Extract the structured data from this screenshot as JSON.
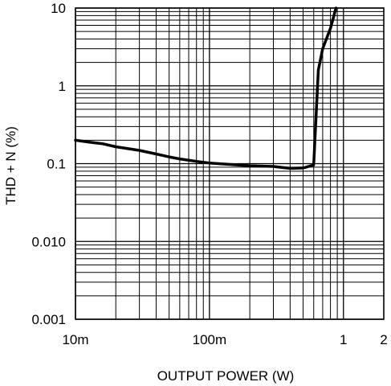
{
  "chart_data": {
    "type": "line",
    "title": "",
    "xlabel": "OUTPUT POWER (W)",
    "ylabel": "THD + N (%)",
    "x_scale": "log",
    "y_scale": "log",
    "xlim": [
      0.01,
      2
    ],
    "ylim": [
      0.001,
      10
    ],
    "grid": true,
    "x_ticks": [
      {
        "value": 0.01,
        "label": "10m"
      },
      {
        "value": 0.1,
        "label": "100m"
      },
      {
        "value": 1,
        "label": "1"
      },
      {
        "value": 2,
        "label": "2"
      }
    ],
    "y_ticks": [
      {
        "value": 10,
        "label": "10"
      },
      {
        "value": 1,
        "label": "1"
      },
      {
        "value": 0.1,
        "label": "0.1"
      },
      {
        "value": 0.01,
        "label": "0.010"
      },
      {
        "value": 0.001,
        "label": "0.001"
      }
    ],
    "series": [
      {
        "x": [
          0.01,
          0.013,
          0.016,
          0.02,
          0.03,
          0.04,
          0.05,
          0.06,
          0.08,
          0.1,
          0.15,
          0.2,
          0.3,
          0.4,
          0.5,
          0.6,
          0.65,
          0.7,
          0.8,
          0.88
        ],
        "y": [
          0.2,
          0.188,
          0.18,
          0.165,
          0.148,
          0.133,
          0.122,
          0.115,
          0.107,
          0.102,
          0.097,
          0.094,
          0.092,
          0.087,
          0.088,
          0.096,
          1.6,
          3.0,
          5.5,
          10
        ]
      }
    ]
  }
}
